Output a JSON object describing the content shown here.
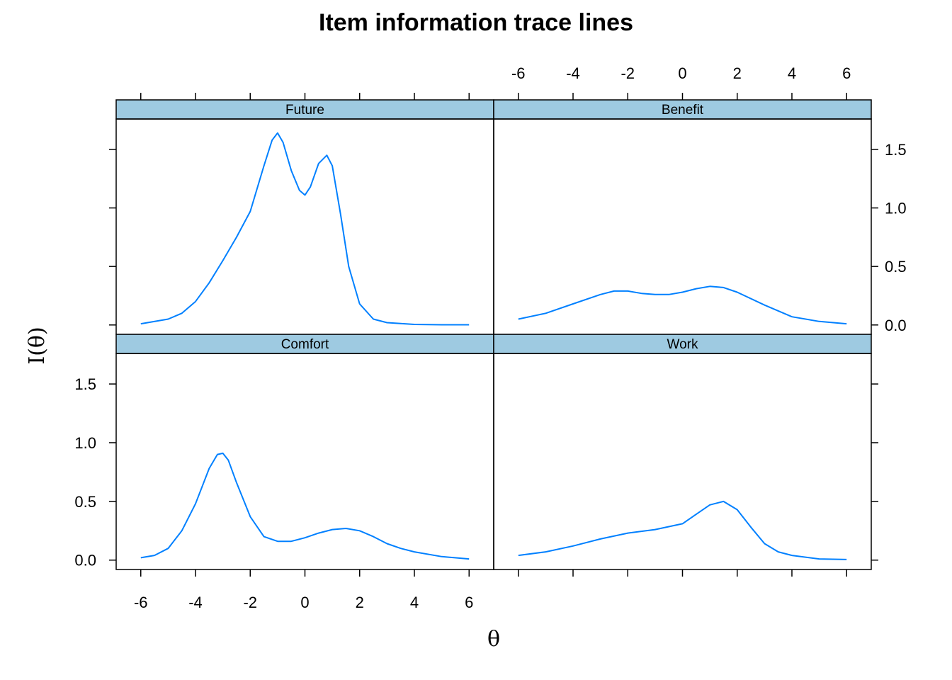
{
  "chart_data": {
    "type": "line",
    "title": "Item information trace lines",
    "xlabel": "θ",
    "ylabel": "I(θ)",
    "xlim": [
      -6.9,
      6.9
    ],
    "ylim": [
      -0.08,
      1.76
    ],
    "x_ticks": [
      -6,
      -4,
      -2,
      0,
      2,
      4,
      6
    ],
    "x_tick_labels": [
      "-6",
      "-4",
      "-2",
      "0",
      "2",
      "4",
      "6"
    ],
    "y_ticks": [
      0,
      0.5,
      1,
      1.5
    ],
    "y_tick_labels": [
      "0.0",
      "0.5",
      "1.0",
      "1.5"
    ],
    "grid": false,
    "line_color": "#0080ff",
    "strip_color": "#9ecae1",
    "panels": [
      {
        "name": "Future",
        "x": [
          -6,
          -5,
          -4.5,
          -4,
          -3.5,
          -3,
          -2.5,
          -2,
          -1.5,
          -1.2,
          -1,
          -0.8,
          -0.5,
          -0.2,
          0,
          0.2,
          0.5,
          0.8,
          1,
          1.3,
          1.6,
          2,
          2.5,
          3,
          4,
          5,
          6
        ],
        "y": [
          0.01,
          0.05,
          0.1,
          0.2,
          0.36,
          0.55,
          0.75,
          0.97,
          1.36,
          1.58,
          1.64,
          1.56,
          1.32,
          1.15,
          1.11,
          1.18,
          1.38,
          1.45,
          1.36,
          0.95,
          0.5,
          0.18,
          0.05,
          0.02,
          0.005,
          0.002,
          0.002
        ]
      },
      {
        "name": "Benefit",
        "x": [
          -6,
          -5,
          -4,
          -3,
          -2.5,
          -2,
          -1.5,
          -1,
          -0.5,
          0,
          0.5,
          1,
          1.5,
          2,
          3,
          4,
          5,
          6
        ],
        "y": [
          0.05,
          0.1,
          0.18,
          0.26,
          0.29,
          0.29,
          0.27,
          0.26,
          0.26,
          0.28,
          0.31,
          0.33,
          0.32,
          0.28,
          0.17,
          0.07,
          0.03,
          0.01
        ]
      },
      {
        "name": "Comfort",
        "x": [
          -6,
          -5.5,
          -5,
          -4.5,
          -4,
          -3.5,
          -3.2,
          -3,
          -2.8,
          -2.5,
          -2,
          -1.5,
          -1,
          -0.5,
          0,
          0.5,
          1,
          1.5,
          2,
          2.5,
          3,
          3.5,
          4,
          5,
          6
        ],
        "y": [
          0.02,
          0.04,
          0.1,
          0.25,
          0.48,
          0.78,
          0.9,
          0.91,
          0.85,
          0.66,
          0.37,
          0.2,
          0.16,
          0.16,
          0.19,
          0.23,
          0.26,
          0.27,
          0.25,
          0.2,
          0.14,
          0.1,
          0.07,
          0.03,
          0.01
        ]
      },
      {
        "name": "Work",
        "x": [
          -6,
          -5,
          -4,
          -3,
          -2,
          -1,
          0,
          0.5,
          1,
          1.5,
          2,
          2.5,
          3,
          3.5,
          4,
          5,
          6
        ],
        "y": [
          0.04,
          0.07,
          0.12,
          0.18,
          0.23,
          0.26,
          0.31,
          0.39,
          0.47,
          0.5,
          0.43,
          0.28,
          0.14,
          0.07,
          0.04,
          0.01,
          0.005
        ]
      }
    ]
  }
}
